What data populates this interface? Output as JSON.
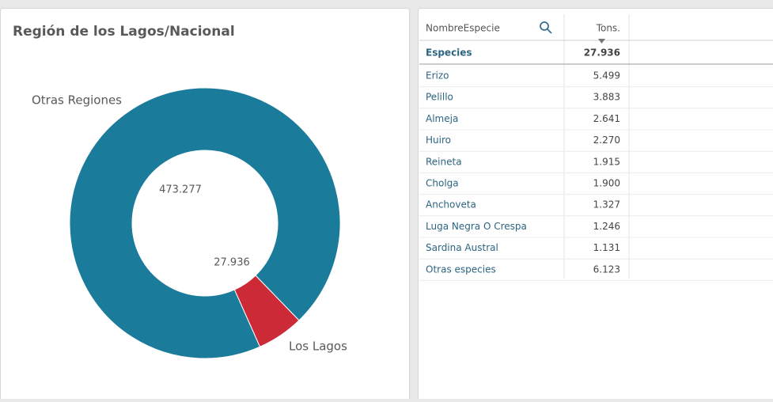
{
  "chart_data": {
    "type": "donut",
    "title": "Región de los Lagos/Nacional",
    "categories": [
      "Otras Regiones",
      "Los Lagos"
    ],
    "values": [
      473277,
      27936
    ],
    "value_labels": [
      "473.277",
      "27.936"
    ],
    "colors": [
      "#1b7b9b",
      "#cc2a36"
    ]
  },
  "table": {
    "headers": [
      "NombreEspecie",
      "Tons."
    ],
    "total": [
      "Especies",
      "27.936"
    ],
    "rows": [
      [
        "Erizo",
        "5.499"
      ],
      [
        "Pelillo",
        "3.883"
      ],
      [
        "Almeja",
        "2.641"
      ],
      [
        "Huiro",
        "2.270"
      ],
      [
        "Reineta",
        "1.915"
      ],
      [
        "Cholga",
        "1.900"
      ],
      [
        "Anchoveta",
        "1.327"
      ],
      [
        "Luga Negra O Crespa",
        "1.246"
      ],
      [
        "Sardina Austral",
        "1.131"
      ],
      [
        "Otras especies",
        "6.123"
      ]
    ]
  }
}
